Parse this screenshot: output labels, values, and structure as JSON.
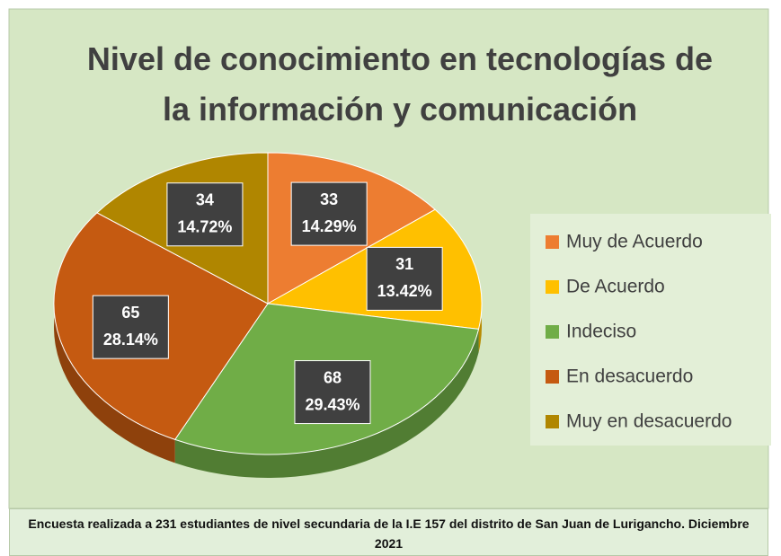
{
  "chart_data": {
    "type": "pie",
    "title": "Nivel de conocimiento en tecnologías de la información y comunicación",
    "categories": [
      "Muy de Acuerdo",
      "De Acuerdo",
      "Indeciso",
      "En desacuerdo",
      "Muy en desacuerdo"
    ],
    "values": [
      33,
      31,
      68,
      65,
      34
    ],
    "percentages": [
      14.29,
      13.42,
      29.43,
      28.14,
      14.72
    ],
    "percentage_labels": [
      "14.29%",
      "13.42%",
      "29.43%",
      "28.14%",
      "14.72%"
    ],
    "colors": [
      "#ed7d31",
      "#ffc000",
      "#70ad47",
      "#c55a11",
      "#b08600"
    ],
    "legend": "right",
    "note": "Encuesta realizada a 231 estudiantes de nivel secundaria de la I.E 157 del distrito de San Juan de Lurigancho. Diciembre 2021"
  }
}
